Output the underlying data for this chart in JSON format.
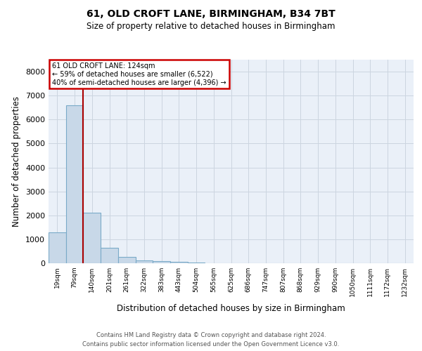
{
  "title1": "61, OLD CROFT LANE, BIRMINGHAM, B34 7BT",
  "title2": "Size of property relative to detached houses in Birmingham",
  "xlabel": "Distribution of detached houses by size in Birmingham",
  "ylabel": "Number of detached properties",
  "bin_labels": [
    "19sqm",
    "79sqm",
    "140sqm",
    "201sqm",
    "261sqm",
    "322sqm",
    "383sqm",
    "443sqm",
    "504sqm",
    "565sqm",
    "625sqm",
    "686sqm",
    "747sqm",
    "807sqm",
    "868sqm",
    "929sqm",
    "990sqm",
    "1050sqm",
    "1111sqm",
    "1172sqm",
    "1232sqm"
  ],
  "bar_heights": [
    1300,
    6600,
    2100,
    650,
    270,
    110,
    75,
    50,
    40,
    0,
    0,
    0,
    0,
    0,
    0,
    0,
    0,
    0,
    0,
    0,
    0
  ],
  "bar_color": "#c8d8e8",
  "bar_edge_color": "#7aaac8",
  "grid_color": "#ccd5e0",
  "background_color": "#eaf0f8",
  "vline_x": 1.5,
  "vline_color": "#aa0000",
  "annotation_line1": "61 OLD CROFT LANE: 124sqm",
  "annotation_line2": "← 59% of detached houses are smaller (6,522)",
  "annotation_line3": "40% of semi-detached houses are larger (4,396) →",
  "annotation_box_color": "#cc0000",
  "ylim": [
    0,
    8500
  ],
  "yticks": [
    0,
    1000,
    2000,
    3000,
    4000,
    5000,
    6000,
    7000,
    8000
  ],
  "footer1": "Contains HM Land Registry data © Crown copyright and database right 2024.",
  "footer2": "Contains public sector information licensed under the Open Government Licence v3.0.",
  "fig_width": 6.0,
  "fig_height": 5.0
}
